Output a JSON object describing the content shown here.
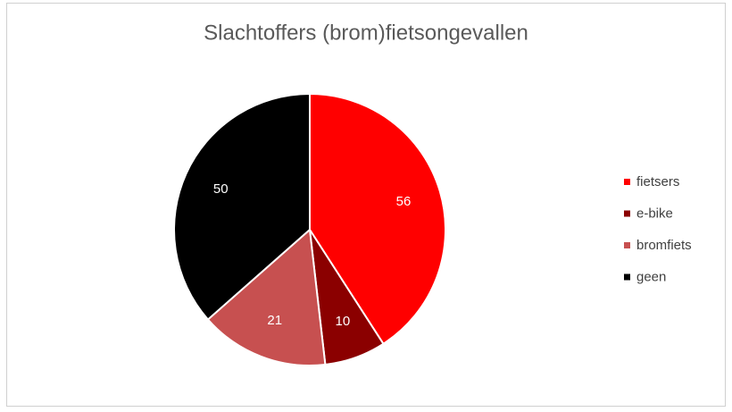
{
  "chart_data": {
    "type": "pie",
    "title": "Slachtoffers (brom)fietsongevallen",
    "categories": [
      "fietsers",
      "e-bike",
      "bromfiets",
      "geen"
    ],
    "values": [
      56,
      10,
      21,
      50
    ],
    "colors": [
      "#ff0000",
      "#8b0000",
      "#c75050",
      "#000000"
    ],
    "legend": "right"
  }
}
